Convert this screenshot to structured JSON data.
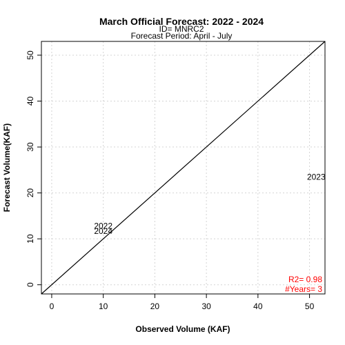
{
  "chart_data": {
    "type": "scatter",
    "title": "March Official Forecast: 2022 - 2024",
    "subtitle_id": "ID= MNRC2",
    "subtitle_period": "Forecast Period:  April - July",
    "xlabel": "Observed Volume (KAF)",
    "ylabel": "Forecast Volume(KAF)",
    "xlim": [
      -2,
      53
    ],
    "ylim": [
      -2,
      53
    ],
    "xticks": [
      0,
      10,
      20,
      30,
      40,
      50
    ],
    "yticks": [
      0,
      10,
      20,
      30,
      40,
      50
    ],
    "grid": true,
    "reference_line": "1:1",
    "points": [
      {
        "label": "2022",
        "x": 10.0,
        "y": 12.8
      },
      {
        "label": "2024",
        "x": 10.0,
        "y": 11.7
      },
      {
        "label": "2023",
        "x": 51.3,
        "y": 23.5
      }
    ],
    "stats": {
      "r2": "R2=  0.98",
      "years": "#Years=  3"
    }
  }
}
